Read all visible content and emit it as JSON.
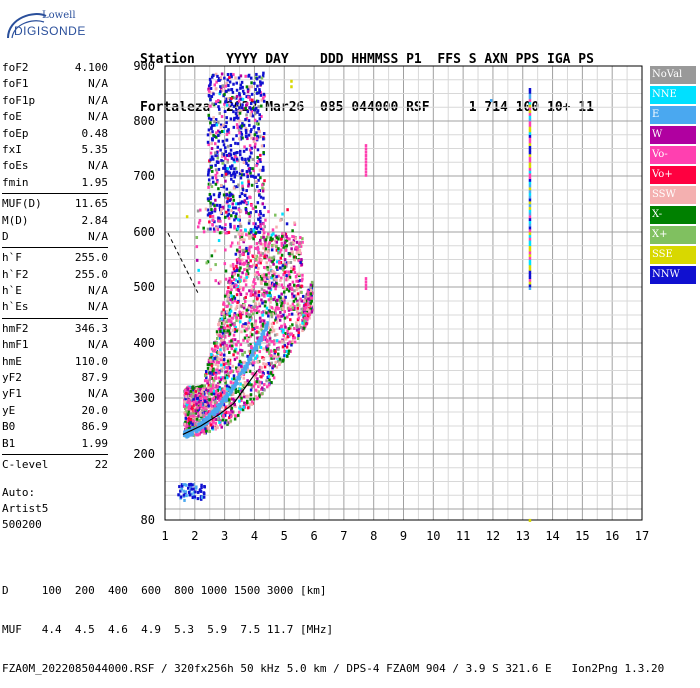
{
  "logo": {
    "line1": "Lowell",
    "line2": "DIGISONDE"
  },
  "header": {
    "line1": "Station    YYYY DAY    DDD HHMMSS P1  FFS S AXN PPS IGA PS",
    "line2": "Fortaleza  2022 Mar26  085 044000 RSF     1 714 100 10+ 11"
  },
  "params": [
    {
      "k": "foF2",
      "v": "4.100"
    },
    {
      "k": "foF1",
      "v": "N/A"
    },
    {
      "k": "foF1p",
      "v": "N/A"
    },
    {
      "k": "foE",
      "v": "N/A"
    },
    {
      "k": "foEp",
      "v": "0.48"
    },
    {
      "k": "fxI",
      "v": "5.35"
    },
    {
      "k": "foEs",
      "v": "N/A"
    },
    {
      "k": "fmin",
      "v": "1.95"
    },
    {
      "sep": true
    },
    {
      "k": "MUF(D)",
      "v": "11.65"
    },
    {
      "k": "M(D)",
      "v": "2.84"
    },
    {
      "k": "D",
      "v": "N/A"
    },
    {
      "sep": true
    },
    {
      "k": "h`F",
      "v": "255.0"
    },
    {
      "k": "h`F2",
      "v": "255.0"
    },
    {
      "k": "h`E",
      "v": "N/A"
    },
    {
      "k": "h`Es",
      "v": "N/A"
    },
    {
      "sep": true
    },
    {
      "k": "hmF2",
      "v": "346.3"
    },
    {
      "k": "hmF1",
      "v": "N/A"
    },
    {
      "k": "hmE",
      "v": "110.0"
    },
    {
      "k": "yF2",
      "v": "87.9"
    },
    {
      "k": "yF1",
      "v": "N/A"
    },
    {
      "k": "yE",
      "v": "20.0"
    },
    {
      "k": "B0",
      "v": "86.9"
    },
    {
      "k": "B1",
      "v": "1.99"
    },
    {
      "sep": true
    },
    {
      "k": "C-level",
      "v": "22"
    }
  ],
  "auto": [
    "Auto:",
    "Artist5",
    "500200"
  ],
  "footer": {
    "line1": "D     100  200  400  600  800 1000 1500 3000 [km]",
    "line2": "MUF   4.4  4.5  4.6  4.9  5.3  5.9  7.5 11.7 [MHz]",
    "line3": "FZA0M_2022085044000.RSF / 320fx256h 50 kHz 5.0 km / DPS-4 FZA0M 904 / 3.9 S 321.6 E   Ion2Png 1.3.20"
  },
  "legend": [
    {
      "label": "NoVal",
      "color": "#999999"
    },
    {
      "label": "NNE",
      "color": "#00e0ff"
    },
    {
      "label": "E",
      "color": "#4aa8f0"
    },
    {
      "label": "W",
      "color": "#b000a0"
    },
    {
      "label": "Vo-",
      "color": "#ff40b0"
    },
    {
      "label": "Vo+",
      "color": "#ff0040"
    },
    {
      "label": "SSW",
      "color": "#f4b0b0"
    },
    {
      "label": "X-",
      "color": "#008000"
    },
    {
      "label": "X+",
      "color": "#80c060"
    },
    {
      "label": "SSE",
      "color": "#d8d800"
    },
    {
      "label": "NNW",
      "color": "#1010d0"
    }
  ],
  "chart_data": {
    "type": "scatter",
    "xlabel": "",
    "ylabel": "",
    "xlim": [
      1,
      17
    ],
    "ylim": [
      80,
      900
    ],
    "x_ticks": [
      1,
      2,
      3,
      4,
      5,
      6,
      7,
      8,
      9,
      10,
      11,
      12,
      13,
      14,
      15,
      16,
      17
    ],
    "y_ticks": [
      80,
      200,
      300,
      400,
      500,
      600,
      700,
      800,
      900
    ],
    "grid": true,
    "clusters": [
      {
        "name": "F2 trace",
        "x_range": [
          1.6,
          5.9
        ],
        "y_range": [
          230,
          600
        ]
      },
      {
        "name": "F2 spread",
        "x_range": [
          2.5,
          4.3
        ],
        "y_range": [
          600,
          890
        ]
      },
      {
        "name": "low echoes",
        "x_range": [
          1.3,
          2.3
        ],
        "y_range": [
          110,
          150
        ]
      }
    ],
    "profile_curve": [
      [
        1.6,
        235
      ],
      [
        2.2,
        250
      ],
      [
        2.8,
        270
      ],
      [
        3.3,
        290
      ],
      [
        3.7,
        320
      ],
      [
        4.1,
        350
      ]
    ],
    "dashed_line": [
      [
        1.1,
        598
      ],
      [
        2.1,
        490
      ]
    ]
  }
}
